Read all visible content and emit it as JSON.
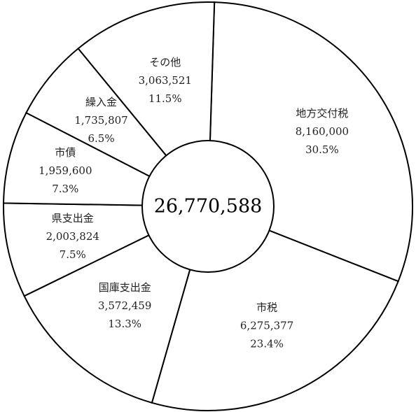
{
  "chart_data": {
    "type": "pie",
    "style": "donut",
    "total_label": "26,770,588",
    "slices": [
      {
        "category": "地方交付税",
        "value_label": "8,160,000",
        "percent_label": "30.5%",
        "value": 8160000,
        "percent": 30.5
      },
      {
        "category": "市税",
        "value_label": "6,275,377",
        "percent_label": "23.4%",
        "value": 6275377,
        "percent": 23.4
      },
      {
        "category": "国庫支出金",
        "value_label": "3,572,459",
        "percent_label": "13.3%",
        "value": 3572459,
        "percent": 13.3
      },
      {
        "category": "県支出金",
        "value_label": "2,003,824",
        "percent_label": "7.5%",
        "value": 2003824,
        "percent": 7.5
      },
      {
        "category": "市債",
        "value_label": "1,959,600",
        "percent_label": "7.3%",
        "value": 1959600,
        "percent": 7.3
      },
      {
        "category": "繰入金",
        "value_label": "1,735,807",
        "percent_label": "6.5%",
        "value": 1735807,
        "percent": 6.5
      },
      {
        "category": "その他",
        "value_label": "3,063,521",
        "percent_label": "11.5%",
        "value": 3063521,
        "percent": 11.5
      }
    ],
    "colors": {
      "fill": "#ffffff",
      "stroke": "#000000"
    }
  }
}
